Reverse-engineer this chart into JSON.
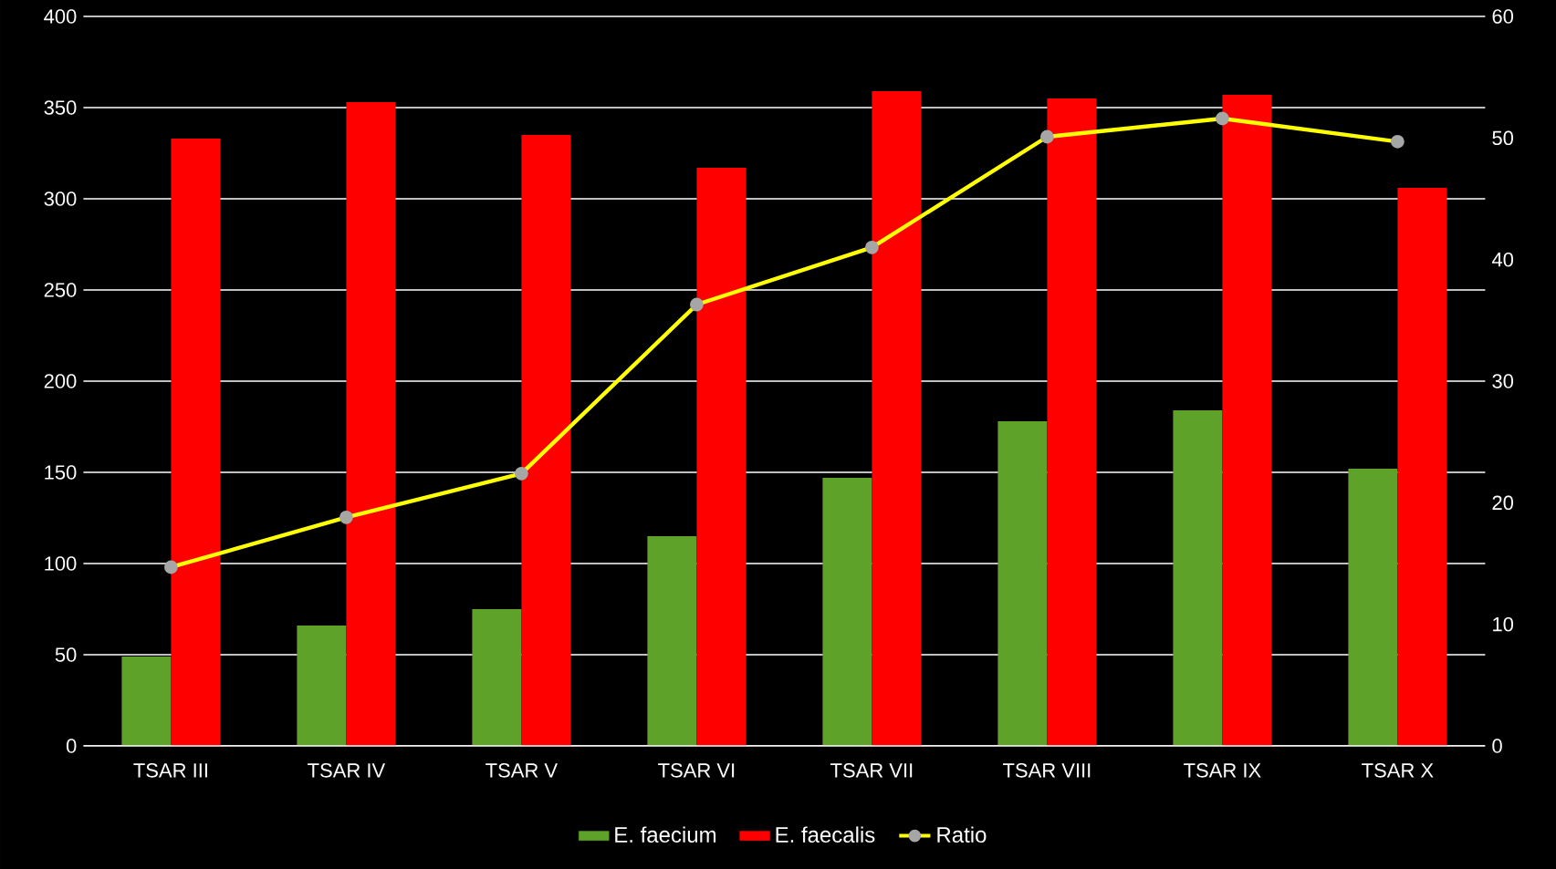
{
  "chart_data": {
    "type": "bar",
    "categories": [
      "TSAR III",
      "TSAR IV",
      "TSAR V",
      "TSAR VI",
      "TSAR VII",
      "TSAR VIII",
      "TSAR IX",
      "TSAR X"
    ],
    "series": [
      {
        "name": "E. faecium",
        "color": "#5ea22a",
        "values": [
          49,
          66,
          75,
          115,
          147,
          178,
          184,
          152
        ]
      },
      {
        "name": "E. faecalis",
        "color": "#ff0000",
        "values": [
          333,
          353,
          335,
          317,
          359,
          355,
          357,
          306
        ]
      },
      {
        "name": "Ratio",
        "type": "line",
        "axis": "y2",
        "color": "#ffff00",
        "marker": "circle",
        "values": [
          14.7,
          18.8,
          22.4,
          36.3,
          41.0,
          50.1,
          51.6,
          49.7
        ]
      }
    ],
    "ylim": [
      0,
      400
    ],
    "yticks": [
      0,
      50,
      100,
      150,
      200,
      250,
      300,
      350,
      400
    ],
    "y2lim": [
      0,
      60
    ],
    "y2ticks": [
      0,
      10,
      20,
      30,
      40,
      50,
      60
    ],
    "grid": "y",
    "legend": "bottom"
  }
}
